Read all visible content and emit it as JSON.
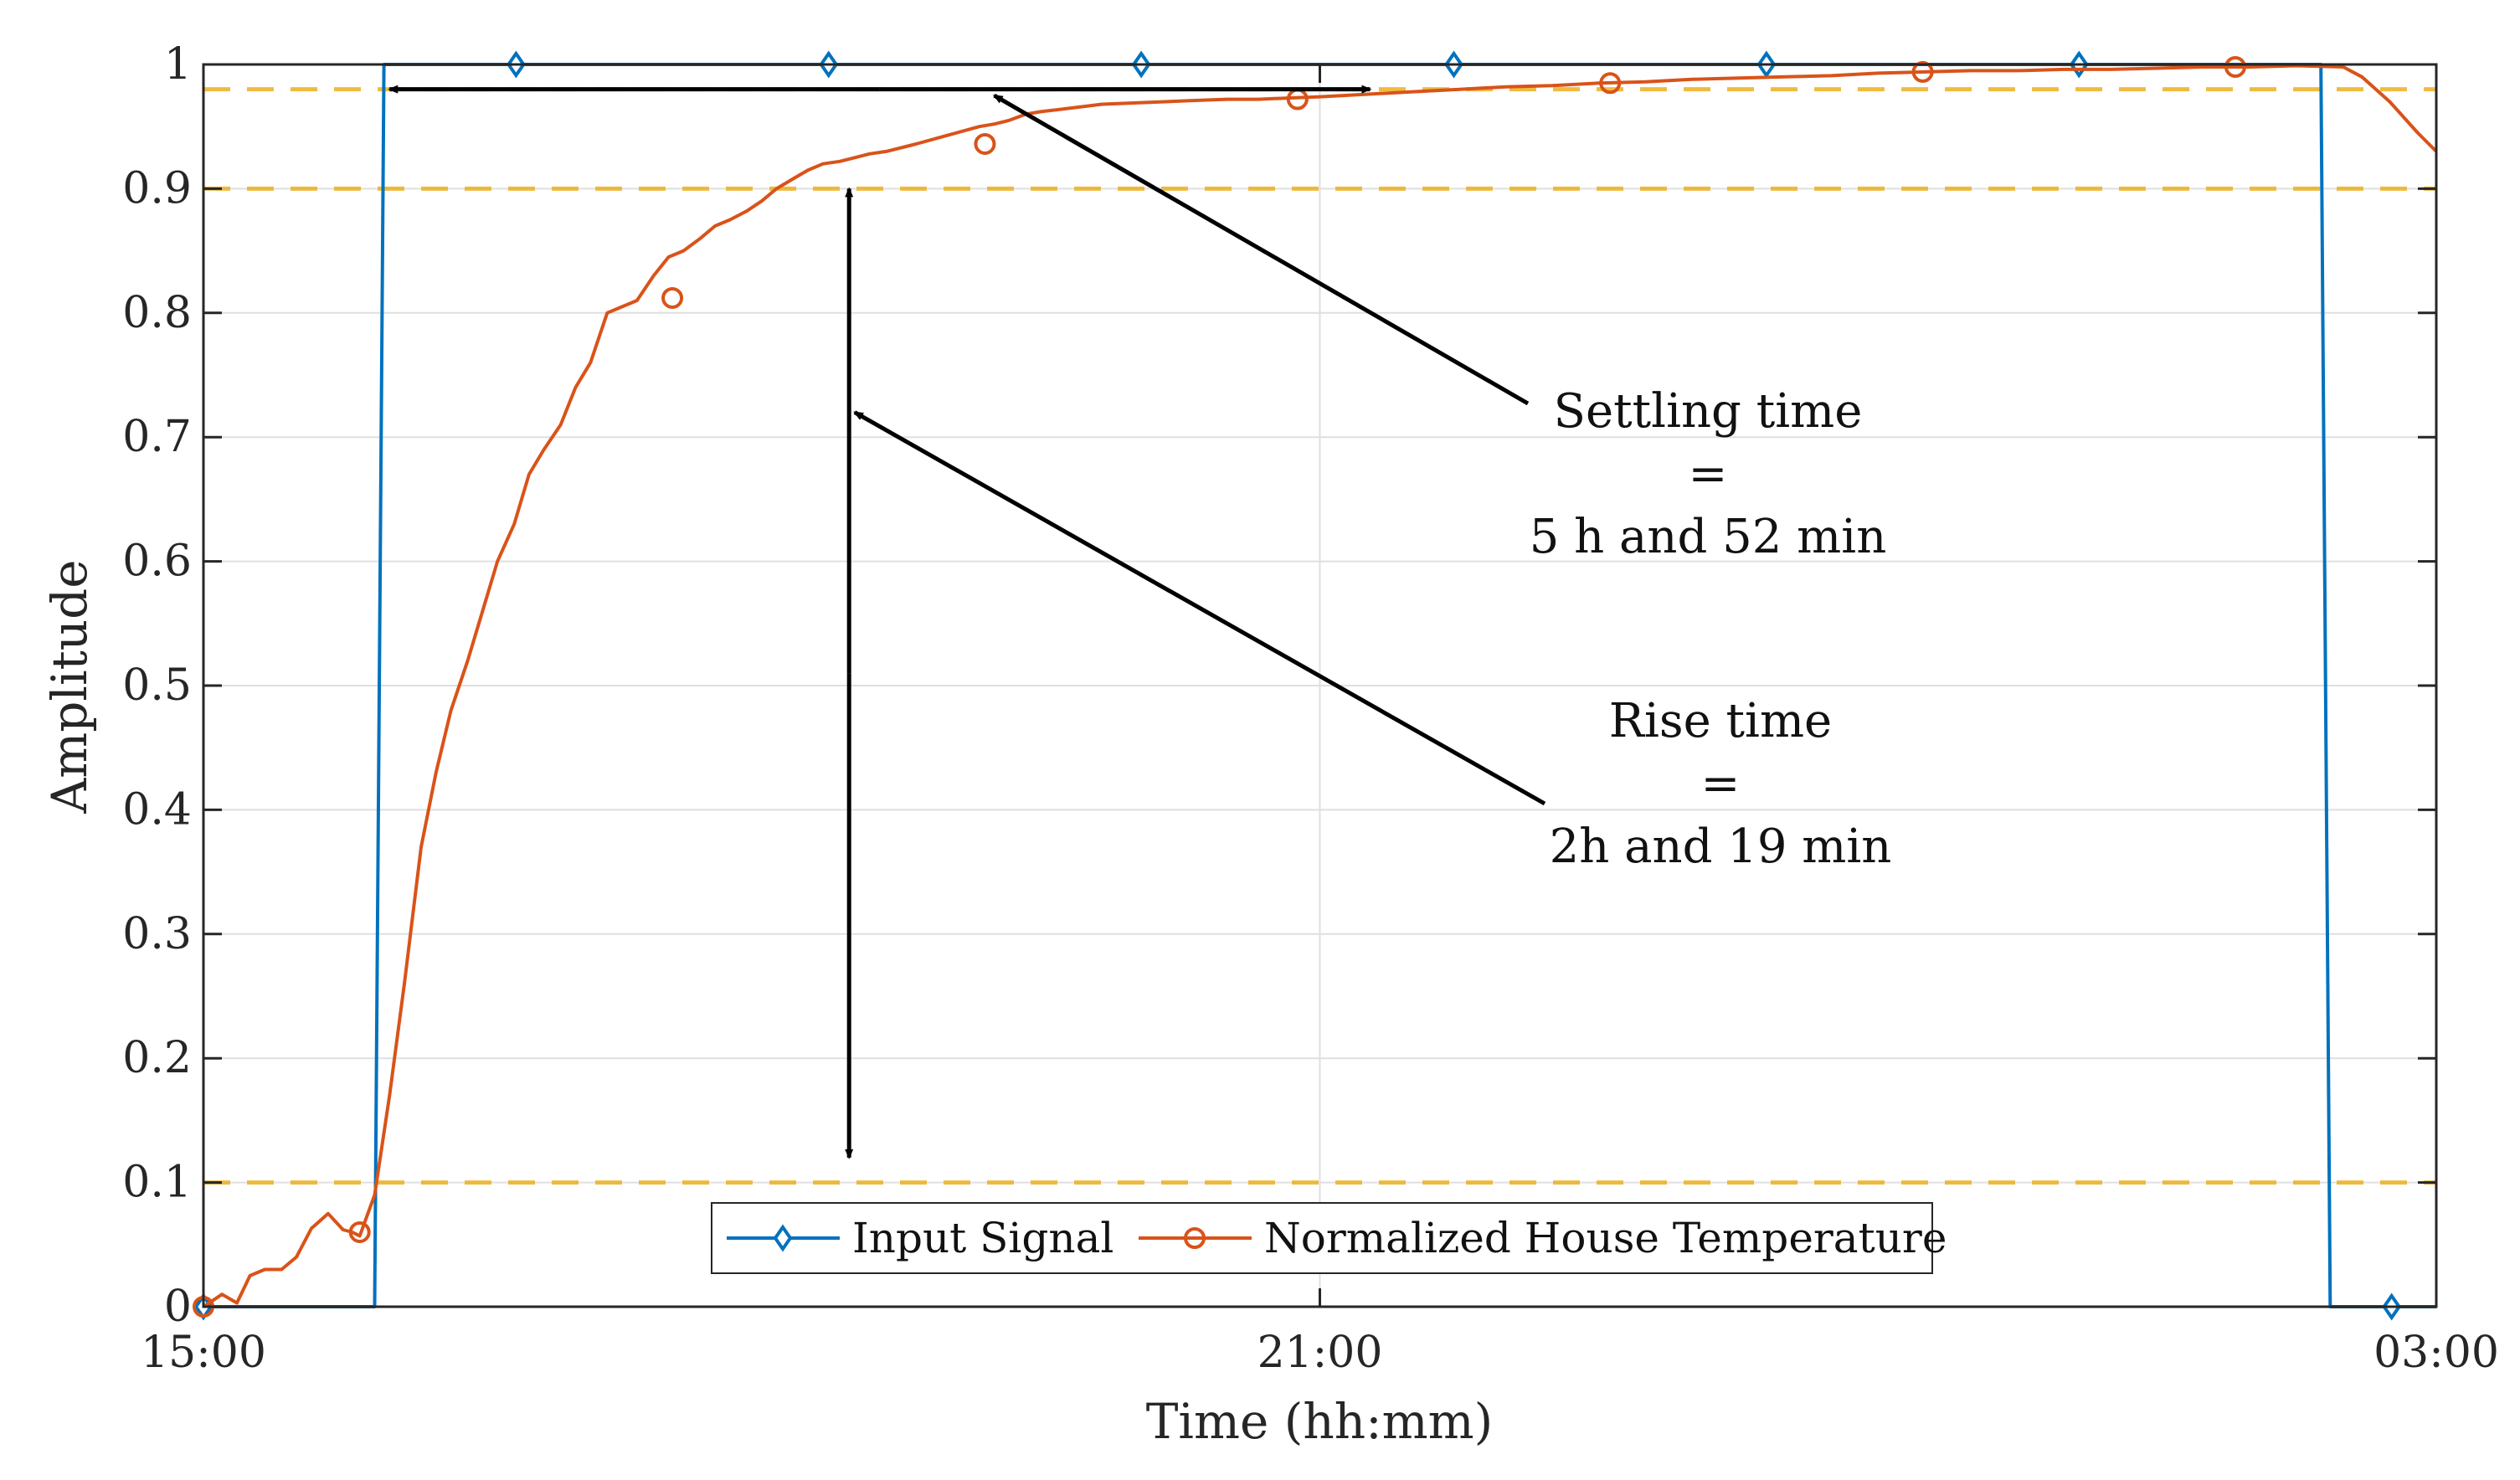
{
  "chart_data": {
    "type": "line",
    "title": "",
    "xlabel": "Time (hh:mm)",
    "ylabel": "Amplitude",
    "xlim": [
      0,
      12
    ],
    "ylim": [
      0,
      1
    ],
    "x_unit": "hours after 15:00",
    "grid": true,
    "xticks": [
      {
        "value": 0,
        "label": "15:00"
      },
      {
        "value": 6,
        "label": "21:00"
      },
      {
        "value": 12,
        "label": "03:00"
      }
    ],
    "yticks": [
      {
        "value": 0,
        "label": "0"
      },
      {
        "value": 0.1,
        "label": "0.1"
      },
      {
        "value": 0.2,
        "label": "0.2"
      },
      {
        "value": 0.3,
        "label": "0.3"
      },
      {
        "value": 0.4,
        "label": "0.4"
      },
      {
        "value": 0.5,
        "label": "0.5"
      },
      {
        "value": 0.6,
        "label": "0.6"
      },
      {
        "value": 0.7,
        "label": "0.7"
      },
      {
        "value": 0.8,
        "label": "0.8"
      },
      {
        "value": 0.9,
        "label": "0.9"
      },
      {
        "value": 1,
        "label": "1"
      }
    ],
    "reference_lines": [
      0.1,
      0.9,
      0.98
    ],
    "reference_color": "#EDB120",
    "series": [
      {
        "name": "Input Signal",
        "color": "#0072BD",
        "marker": "diamond",
        "x": [
          0,
          0.92,
          0.97,
          11.38,
          11.43,
          12
        ],
        "y": [
          0,
          0,
          1,
          1,
          0,
          0
        ],
        "marker_x": [
          0,
          1.68,
          3.36,
          5.04,
          6.72,
          8.4,
          10.08,
          11.76
        ],
        "marker_y": [
          0,
          1,
          1,
          1,
          1,
          1,
          1,
          0
        ]
      },
      {
        "name": "Normalized House Temperature",
        "color": "#D95319",
        "marker": "circle",
        "x": [
          0,
          0.1,
          0.18,
          0.25,
          0.33,
          0.42,
          0.5,
          0.58,
          0.67,
          0.75,
          0.8,
          0.84,
          0.92,
          1.0,
          1.08,
          1.17,
          1.25,
          1.33,
          1.42,
          1.5,
          1.58,
          1.67,
          1.75,
          1.83,
          1.92,
          2.0,
          2.08,
          2.17,
          2.25,
          2.33,
          2.42,
          2.5,
          2.58,
          2.67,
          2.75,
          2.83,
          2.92,
          3.0,
          3.08,
          3.17,
          3.25,
          3.33,
          3.42,
          3.5,
          3.58,
          3.67,
          3.83,
          4.0,
          4.17,
          4.25,
          4.33,
          4.42,
          4.5,
          4.67,
          4.83,
          5.0,
          5.17,
          5.33,
          5.5,
          5.67,
          5.83,
          6.0,
          6.25,
          6.5,
          6.75,
          7.0,
          7.25,
          7.5,
          7.75,
          8.0,
          8.25,
          8.5,
          8.75,
          9.0,
          9.25,
          9.5,
          9.75,
          10.0,
          10.25,
          10.5,
          10.75,
          11.0,
          11.25,
          11.5,
          11.6,
          11.75,
          11.9,
          12.0
        ],
        "y": [
          0,
          0.01,
          0.003,
          0.025,
          0.03,
          0.03,
          0.04,
          0.063,
          0.075,
          0.062,
          0.06,
          0.057,
          0.09,
          0.17,
          0.26,
          0.37,
          0.43,
          0.48,
          0.52,
          0.56,
          0.6,
          0.63,
          0.67,
          0.69,
          0.71,
          0.74,
          0.76,
          0.8,
          0.805,
          0.81,
          0.83,
          0.845,
          0.85,
          0.86,
          0.87,
          0.875,
          0.882,
          0.89,
          0.9,
          0.908,
          0.915,
          0.92,
          0.922,
          0.925,
          0.928,
          0.93,
          0.936,
          0.943,
          0.95,
          0.952,
          0.955,
          0.96,
          0.962,
          0.965,
          0.968,
          0.969,
          0.97,
          0.971,
          0.972,
          0.972,
          0.973,
          0.974,
          0.976,
          0.978,
          0.98,
          0.982,
          0.983,
          0.985,
          0.986,
          0.988,
          0.989,
          0.99,
          0.991,
          0.993,
          0.994,
          0.995,
          0.995,
          0.996,
          0.996,
          0.997,
          0.998,
          0.998,
          0.999,
          0.998,
          0.99,
          0.97,
          0.945,
          0.93
        ],
        "marker_x": [
          0,
          0.84,
          2.52,
          4.2,
          5.88,
          7.56,
          9.24,
          10.92
        ],
        "marker_y": [
          0,
          0.06,
          0.812,
          0.936,
          0.972,
          0.985,
          0.994,
          0.998
        ]
      }
    ],
    "annotations": [
      {
        "name": "settling",
        "lines": [
          "Settling time",
          "=",
          "5 h and 52 min"
        ],
        "bracket_x": [
          1.0,
          6.27
        ],
        "bracket_y": 0.98,
        "arrow_target": [
          4.25,
          0.975
        ]
      },
      {
        "name": "rise",
        "lines": [
          "Rise time",
          "=",
          "2h and 19 min"
        ],
        "bracket_x": 3.47,
        "bracket_y": [
          0.12,
          0.9
        ],
        "arrow_target": [
          3.5,
          0.72
        ]
      }
    ],
    "legend_position": "bottom-center"
  }
}
